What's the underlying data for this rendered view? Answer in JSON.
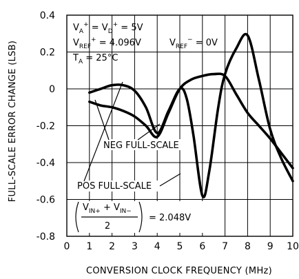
{
  "chart_data": {
    "type": "line",
    "title": "",
    "xlabel": "CONVERSION CLOCK FREQUENCY (MHz)",
    "ylabel": "FULL-SCALE ERROR CHANGE (LSB)",
    "xlim": [
      0,
      10
    ],
    "ylim": [
      -0.8,
      0.4
    ],
    "x_ticks": [
      "0",
      "1",
      "2",
      "3",
      "4",
      "5",
      "6",
      "7",
      "8",
      "9",
      "10"
    ],
    "y_ticks": [
      "0.4",
      "0.2",
      "0",
      "-0.2",
      "-0.4",
      "-0.6",
      "-0.8"
    ],
    "grid": true,
    "series": [
      {
        "name": "POS FULL-SCALE",
        "x": [
          1,
          1.5,
          2,
          2.5,
          3,
          3.5,
          4,
          4.5,
          5,
          5.3,
          5.6,
          6,
          6.3,
          6.7,
          7,
          7.5,
          8,
          8.5,
          9,
          9.5,
          10
        ],
        "y": [
          -0.02,
          0.0,
          0.02,
          0.02,
          -0.01,
          -0.1,
          -0.24,
          -0.12,
          0.0,
          -0.05,
          -0.25,
          -0.58,
          -0.45,
          -0.1,
          0.08,
          0.22,
          0.29,
          0.05,
          -0.22,
          -0.38,
          -0.5
        ]
      },
      {
        "name": "NEG FULL-SCALE",
        "x": [
          1,
          1.5,
          2,
          2.5,
          3,
          3.5,
          4,
          4.5,
          5,
          5.5,
          6,
          6.5,
          7,
          7.5,
          8,
          8.5,
          9,
          9.5,
          10
        ],
        "y": [
          -0.07,
          -0.09,
          -0.1,
          -0.12,
          -0.15,
          -0.2,
          -0.26,
          -0.13,
          0.0,
          0.05,
          0.07,
          0.08,
          0.07,
          -0.03,
          -0.13,
          -0.2,
          -0.27,
          -0.35,
          -0.43
        ]
      }
    ],
    "annotations": {
      "supply": "V_A+ = V_D+ = 5V",
      "vref_pos": "V_REF+ = 4.096V",
      "vref_neg": "V_REF- = 0V",
      "temp": "T_A = 25°C",
      "vin_cm": "(V_IN+ + V_IN-)/2 = 2.048V"
    }
  },
  "labels": {
    "supply_va": "V",
    "supply_va_sub": "A",
    "supply_rest": " = V",
    "supply_vd_sub": "D",
    "supply_val": " = 5V",
    "plus": "+",
    "minus": "−",
    "vref_pos_v": "V",
    "vref_sub": "REF",
    "vref_pos_val": " = 4.096V",
    "vref_neg_val": " = 0V",
    "temp_v": "T",
    "temp_sub": "A",
    "temp_val": " = 25°C",
    "neg_label": "NEG FULL-SCALE",
    "pos_label": "POS FULL-SCALE",
    "vin_num_a": "V",
    "vin_sub_a": "IN+",
    "vin_plus": " + V",
    "vin_sub_b": "IN−",
    "vin_den": "2",
    "vin_val": "= 2.048V"
  }
}
